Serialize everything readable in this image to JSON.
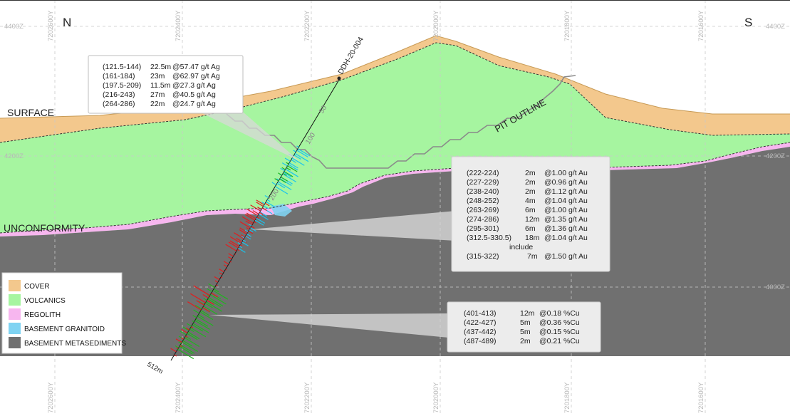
{
  "orientation": {
    "north": "N",
    "south": "S"
  },
  "elevation_labels": [
    "4400Z",
    "4400Z",
    "4200Z",
    "4200Z",
    "4000Z"
  ],
  "northing_labels": [
    "7202600Y",
    "7202400Y",
    "7202200Y",
    "7202000Y",
    "7201800Y",
    "7201600Y"
  ],
  "surface_labels": {
    "surface": "SURFACE",
    "unconformity": "UNCONFORMITY",
    "pit_outline": "PIT OUTLINE"
  },
  "drillhole": {
    "name": "DDH-20-004",
    "depth_ticks": [
      "50",
      "100",
      "200"
    ],
    "end_depth": "512m"
  },
  "annotations": {
    "silver": {
      "rows": [
        {
          "interval": "(121.5-144)",
          "length": "22.5m",
          "grade": "@57.47 g/t Ag"
        },
        {
          "interval": "(161-184)",
          "length": "23m",
          "grade": "@62.97 g/t Ag"
        },
        {
          "interval": "(197.5-209)",
          "length": "11.5m",
          "grade": "@27.3  g/t Ag"
        },
        {
          "interval": "(216-243)",
          "length": "27m",
          "grade": "@40.5  g/t Ag"
        },
        {
          "interval": "(264-286)",
          "length": "22m",
          "grade": "@24.7  g/t Ag"
        }
      ]
    },
    "gold": {
      "rows": [
        {
          "interval": "(222-224)",
          "length": "2m",
          "grade": "@1.00 g/t Au"
        },
        {
          "interval": "(227-229)",
          "length": "2m",
          "grade": "@0.96 g/t Au"
        },
        {
          "interval": "(238-240)",
          "length": "2m",
          "grade": "@1.12 g/t Au"
        },
        {
          "interval": "(248-252)",
          "length": "4m",
          "grade": "@1.04 g/t Au"
        },
        {
          "interval": "(263-269)",
          "length": "6m",
          "grade": "@1.00 g/t Au"
        },
        {
          "interval": "(274-286)",
          "length": "12m",
          "grade": "@1.35 g/t Au"
        },
        {
          "interval": "(295-301)",
          "length": "6m",
          "grade": "@1.36 g/t Au"
        },
        {
          "interval": "(312.5-330.5)",
          "length": "18m",
          "grade": "@1.04 g/t Au"
        }
      ],
      "include_label": "include",
      "include_row": {
        "interval": "(315-322)",
        "length": "7m",
        "grade": "@1.50 g/t Au"
      }
    },
    "copper": {
      "rows": [
        {
          "interval": "(401-413)",
          "length": "12m",
          "grade": "@0.18 %Cu"
        },
        {
          "interval": "(422-427)",
          "length": "5m",
          "grade": "@0.36 %Cu"
        },
        {
          "interval": "(437-442)",
          "length": "5m",
          "grade": "@0.15 %Cu"
        },
        {
          "interval": "(487-489)",
          "length": "2m",
          "grade": "@0.21 %Cu"
        }
      ]
    }
  },
  "legend": [
    {
      "label": "COVER",
      "color": "#f3c88d"
    },
    {
      "label": "VOLCANICS",
      "color": "#a6f5a0"
    },
    {
      "label": "REGOLITH",
      "color": "#f7b6ef"
    },
    {
      "label": "BASEMENT GRANITOID",
      "color": "#7fd3f2"
    },
    {
      "label": "BASEMENT METASEDIMENTS",
      "color": "#707070"
    }
  ],
  "colors": {
    "cover": "#f3c88d",
    "volcanics": "#a6f5a0",
    "regolith": "#f7b6ef",
    "granitoid": "#7fd3f2",
    "metasediments": "#707070",
    "silver_assay": "#19c4ee",
    "gold_assay": "#e21d1d",
    "copper_assay": "#1fb51f",
    "pit_outline": "#8a8a8a"
  }
}
